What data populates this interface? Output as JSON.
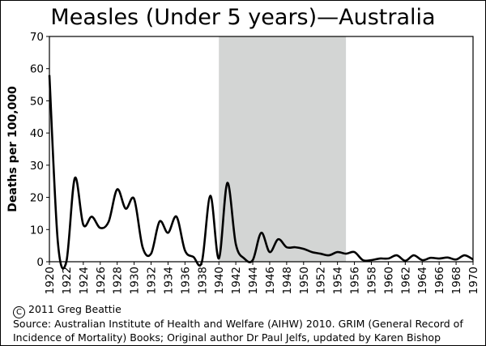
{
  "chart_data": {
    "type": "line",
    "title": "Measles (Under 5 years)—Australia",
    "ylabel": "Deaths per 100,000",
    "xlabel": "",
    "xlim": [
      1920,
      1970
    ],
    "ylim": [
      0,
      70
    ],
    "y_ticks": [
      0,
      10,
      20,
      30,
      40,
      50,
      60,
      70
    ],
    "x_ticks": [
      1920,
      1922,
      1924,
      1926,
      1928,
      1930,
      1932,
      1934,
      1936,
      1938,
      1940,
      1942,
      1944,
      1946,
      1948,
      1950,
      1952,
      1954,
      1956,
      1958,
      1960,
      1962,
      1964,
      1966,
      1968,
      1970
    ],
    "shaded_region": {
      "x_start": 1940,
      "x_end": 1955,
      "color": "#d3d5d4"
    },
    "grid": false,
    "series": [
      {
        "color": "#000000",
        "points": [
          [
            1920,
            58
          ],
          [
            1921,
            6
          ],
          [
            1922,
            0
          ],
          [
            1923,
            26
          ],
          [
            1924,
            11.5
          ],
          [
            1925,
            14
          ],
          [
            1926,
            10.5
          ],
          [
            1927,
            12.5
          ],
          [
            1928,
            22.5
          ],
          [
            1929,
            16.5
          ],
          [
            1930,
            19.5
          ],
          [
            1931,
            4.5
          ],
          [
            1932,
            2.5
          ],
          [
            1933,
            12.5
          ],
          [
            1934,
            9
          ],
          [
            1935,
            14
          ],
          [
            1936,
            3.5
          ],
          [
            1937,
            1.5
          ],
          [
            1938,
            0
          ],
          [
            1939,
            20.5
          ],
          [
            1940,
            1
          ],
          [
            1941,
            24.5
          ],
          [
            1942,
            5.5
          ],
          [
            1943,
            1
          ],
          [
            1944,
            0.5
          ],
          [
            1945,
            9
          ],
          [
            1946,
            3
          ],
          [
            1947,
            7
          ],
          [
            1948,
            4.5
          ],
          [
            1949,
            4.5
          ],
          [
            1950,
            4
          ],
          [
            1951,
            3
          ],
          [
            1952,
            2.5
          ],
          [
            1953,
            2
          ],
          [
            1954,
            3
          ],
          [
            1955,
            2.5
          ],
          [
            1956,
            3
          ],
          [
            1957,
            0.5
          ],
          [
            1958,
            0.5
          ],
          [
            1959,
            1
          ],
          [
            1960,
            1
          ],
          [
            1961,
            2
          ],
          [
            1962,
            0.3
          ],
          [
            1963,
            2
          ],
          [
            1964,
            0.5
          ],
          [
            1965,
            1.2
          ],
          [
            1966,
            1
          ],
          [
            1967,
            1.3
          ],
          [
            1968,
            0.7
          ],
          [
            1969,
            2
          ],
          [
            1970,
            0.7
          ]
        ]
      }
    ]
  },
  "footer": {
    "copyright_symbol": "C",
    "copyright": "2011 Greg Beattie",
    "source_line1": "Source: Australian Institute of Health and Welfare (AIHW) 2010. GRIM (General Record of",
    "source_line2": "Incidence of Mortality) Books; Original author Dr Paul Jelfs, updated by Karen Bishop"
  }
}
